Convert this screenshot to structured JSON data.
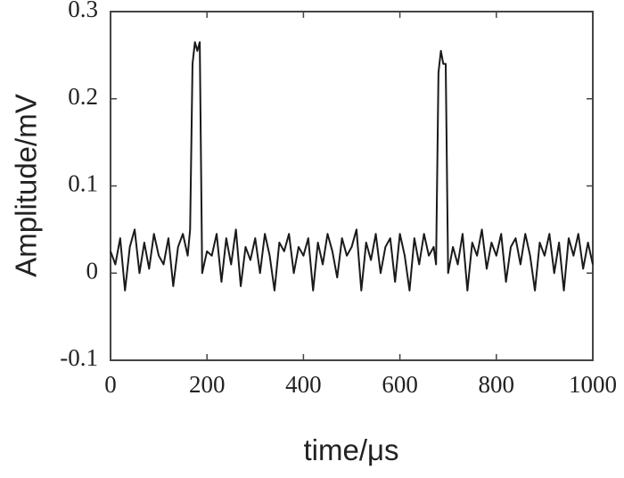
{
  "chart_data": {
    "type": "line",
    "xlabel": "time/μs",
    "ylabel": "Amplitude/mV",
    "x": [
      0,
      10,
      20,
      30,
      40,
      50,
      60,
      70,
      80,
      90,
      100,
      110,
      120,
      130,
      140,
      150,
      160,
      165,
      170,
      175,
      180,
      185,
      190,
      200,
      210,
      220,
      230,
      240,
      250,
      260,
      270,
      280,
      290,
      300,
      310,
      320,
      330,
      340,
      350,
      360,
      370,
      380,
      390,
      400,
      410,
      420,
      430,
      440,
      450,
      460,
      470,
      480,
      490,
      500,
      510,
      520,
      530,
      540,
      550,
      560,
      570,
      580,
      590,
      600,
      610,
      620,
      630,
      640,
      650,
      660,
      670,
      675,
      680,
      685,
      690,
      695,
      700,
      710,
      720,
      730,
      740,
      750,
      760,
      770,
      780,
      790,
      800,
      810,
      820,
      830,
      840,
      850,
      860,
      870,
      880,
      890,
      900,
      910,
      920,
      930,
      940,
      950,
      960,
      970,
      980,
      990,
      1000
    ],
    "series": [
      {
        "color": "#1a1a1a",
        "values": [
          0.025,
          0.01,
          0.04,
          -0.02,
          0.03,
          0.05,
          0,
          0.035,
          0.005,
          0.045,
          0.02,
          0.01,
          0.04,
          -0.015,
          0.03,
          0.045,
          0.02,
          0.05,
          0.24,
          0.265,
          0.255,
          0.265,
          0,
          0.025,
          0.02,
          0.045,
          -0.01,
          0.04,
          0.01,
          0.05,
          -0.015,
          0.03,
          0.015,
          0.04,
          0,
          0.045,
          0.02,
          -0.02,
          0.035,
          0.025,
          0.045,
          0,
          0.03,
          0.02,
          0.04,
          -0.02,
          0.035,
          0.01,
          0.045,
          0.025,
          -0.005,
          0.04,
          0.02,
          0.03,
          0.05,
          -0.02,
          0.035,
          0.015,
          0.045,
          0,
          0.03,
          0.04,
          -0.01,
          0.045,
          0.02,
          -0.02,
          0.04,
          0.01,
          0.045,
          0.02,
          0.03,
          0.01,
          0.23,
          0.255,
          0.24,
          0.24,
          0,
          0.03,
          0.01,
          0.045,
          -0.02,
          0.035,
          0.02,
          0.05,
          0.005,
          0.035,
          0.02,
          0.045,
          -0.01,
          0.03,
          0.04,
          0.01,
          0.045,
          0.02,
          -0.02,
          0.035,
          0.02,
          0.045,
          0,
          0.035,
          -0.02,
          0.04,
          0.02,
          0.045,
          0.005,
          0.035,
          0.01
        ]
      }
    ],
    "xlim": [
      0,
      1000
    ],
    "xticks": [
      0,
      200,
      400,
      600,
      800,
      1000
    ],
    "ylim": [
      -0.1,
      0.3
    ],
    "yticks": [
      -0.1,
      0,
      0.1,
      0.2,
      0.3
    ],
    "grid": false
  }
}
